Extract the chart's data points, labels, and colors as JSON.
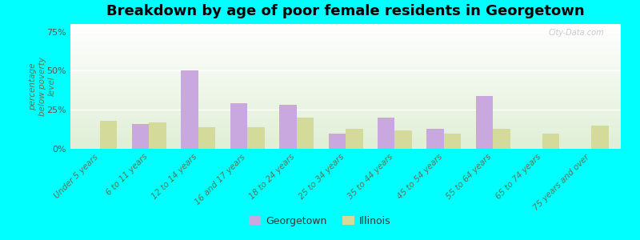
{
  "title": "Breakdown by age of poor female residents in Georgetown",
  "categories": [
    "Under 5 years",
    "6 to 11 years",
    "12 to 14 years",
    "16 and 17 years",
    "18 to 24 years",
    "25 to 34 years",
    "35 to 44 years",
    "45 to 54 years",
    "55 to 64 years",
    "65 to 74 years",
    "75 years and over"
  ],
  "georgetown_values": [
    0,
    16,
    50,
    29,
    28,
    10,
    20,
    13,
    34,
    0,
    0
  ],
  "illinois_values": [
    18,
    17,
    14,
    14,
    20,
    13,
    12,
    10,
    13,
    10,
    15
  ],
  "georgetown_color": "#c9a8e0",
  "illinois_color": "#d4db9a",
  "background_color": "#00ffff",
  "plot_bg_color": "#eef3e2",
  "ylabel": "percentage\nbelow poverty\nlevel",
  "yticks": [
    0,
    25,
    50,
    75
  ],
  "ytick_labels": [
    "0%",
    "25%",
    "50%",
    "75%"
  ],
  "ylim": [
    0,
    80
  ],
  "bar_width": 0.35,
  "watermark": "City-Data.com",
  "title_fontsize": 13,
  "label_fontsize": 7.5,
  "legend_fontsize": 9
}
